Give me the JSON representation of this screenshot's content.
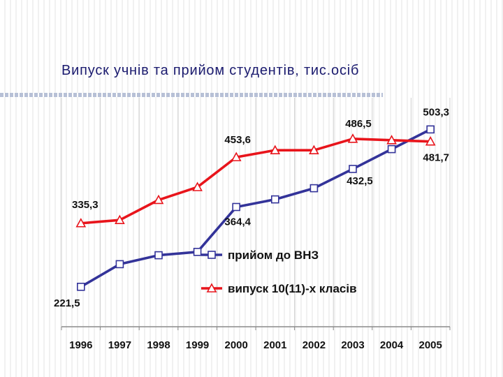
{
  "slide": {
    "title": "Випуск учнів та прийом студентів, тис.осіб"
  },
  "chart_data": {
    "type": "line",
    "x": [
      "1996",
      "1997",
      "1998",
      "1999",
      "2000",
      "2001",
      "2002",
      "2003",
      "2004",
      "2005"
    ],
    "ylim": [
      150,
      560
    ],
    "grid": {
      "vertical": true,
      "horizontal": false
    },
    "legend_position": "center",
    "series": [
      {
        "name": "прийом до ВНЗ",
        "color": "#333399",
        "marker": "square",
        "values": [
          221.5,
          262,
          278,
          284,
          364.4,
          378,
          398,
          432.5,
          468,
          503.3
        ],
        "labels": {
          "0": "221,5",
          "4": "364,4",
          "7": "432,5",
          "9": "503,3"
        }
      },
      {
        "name": "випуск 10(11)-х класів",
        "color": "#e8141b",
        "marker": "triangle",
        "values": [
          335.3,
          341,
          377,
          400,
          453.6,
          466,
          466,
          486.5,
          484,
          481.7
        ],
        "labels": {
          "0": "335,3",
          "4": "453,6",
          "7": "486,5",
          "9": "481,7"
        }
      }
    ]
  }
}
